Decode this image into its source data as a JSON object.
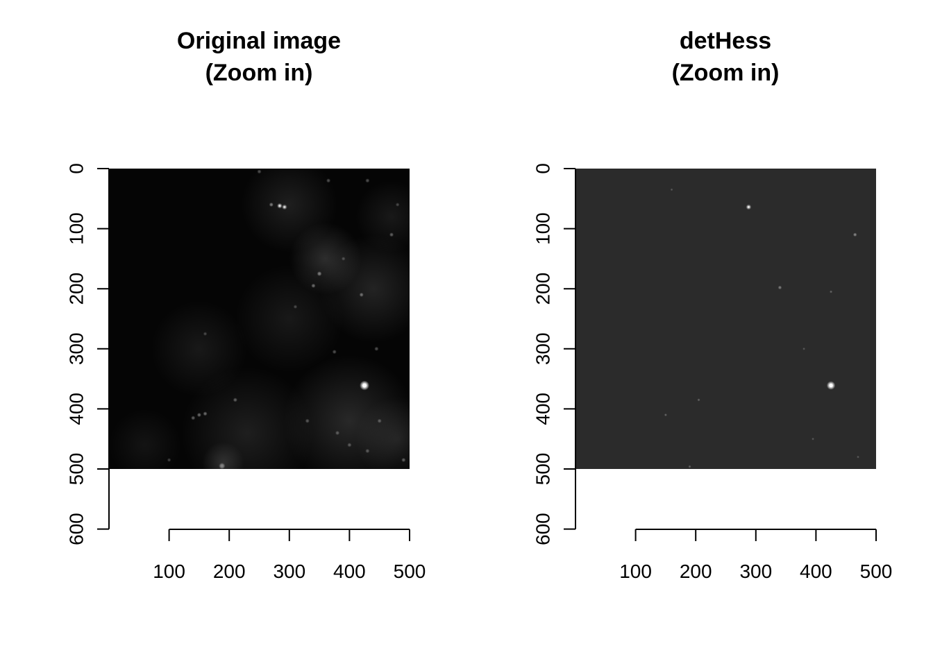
{
  "chart_data": [
    {
      "type": "heatmap",
      "title": [
        "Original image",
        "(Zoom in)"
      ],
      "xlabel": "",
      "ylabel": "",
      "xlim": [
        0,
        500
      ],
      "ylim": [
        600,
        0
      ],
      "image_extent": {
        "x": [
          0,
          500
        ],
        "y": [
          0,
          500
        ]
      },
      "x_ticks": [
        100,
        200,
        300,
        400,
        500
      ],
      "y_ticks": [
        0,
        100,
        200,
        300,
        400,
        500,
        600
      ],
      "colormap": "grayscale",
      "background": "#050505",
      "spot_color": "#ffffff",
      "glows": [
        {
          "x": 360,
          "y": 150,
          "r": 60,
          "intensity": 0.16
        },
        {
          "x": 300,
          "y": 60,
          "r": 80,
          "intensity": 0.1
        },
        {
          "x": 440,
          "y": 200,
          "r": 90,
          "intensity": 0.12
        },
        {
          "x": 300,
          "y": 250,
          "r": 90,
          "intensity": 0.08
        },
        {
          "x": 150,
          "y": 300,
          "r": 80,
          "intensity": 0.08
        },
        {
          "x": 400,
          "y": 420,
          "r": 110,
          "intensity": 0.14
        },
        {
          "x": 230,
          "y": 440,
          "r": 110,
          "intensity": 0.1
        },
        {
          "x": 480,
          "y": 450,
          "r": 70,
          "intensity": 0.1
        },
        {
          "x": 60,
          "y": 460,
          "r": 60,
          "intensity": 0.06
        },
        {
          "x": 190,
          "y": 490,
          "r": 35,
          "intensity": 0.14
        },
        {
          "x": 470,
          "y": 80,
          "r": 60,
          "intensity": 0.08
        }
      ],
      "spots": [
        {
          "x": 425,
          "y": 361,
          "r": 4.5,
          "intensity": 1.0
        },
        {
          "x": 284,
          "y": 62,
          "r": 2.5,
          "intensity": 0.65
        },
        {
          "x": 292,
          "y": 64,
          "r": 2.5,
          "intensity": 0.6
        },
        {
          "x": 270,
          "y": 60,
          "r": 2,
          "intensity": 0.45
        },
        {
          "x": 350,
          "y": 175,
          "r": 2.2,
          "intensity": 0.45
        },
        {
          "x": 340,
          "y": 195,
          "r": 2,
          "intensity": 0.4
        },
        {
          "x": 420,
          "y": 210,
          "r": 2,
          "intensity": 0.4
        },
        {
          "x": 470,
          "y": 110,
          "r": 2,
          "intensity": 0.35
        },
        {
          "x": 188,
          "y": 495,
          "r": 3,
          "intensity": 0.45
        },
        {
          "x": 150,
          "y": 410,
          "r": 2,
          "intensity": 0.4
        },
        {
          "x": 160,
          "y": 408,
          "r": 2,
          "intensity": 0.4
        },
        {
          "x": 140,
          "y": 415,
          "r": 2,
          "intensity": 0.35
        },
        {
          "x": 210,
          "y": 385,
          "r": 2,
          "intensity": 0.35
        },
        {
          "x": 330,
          "y": 420,
          "r": 2,
          "intensity": 0.3
        },
        {
          "x": 380,
          "y": 440,
          "r": 2,
          "intensity": 0.3
        },
        {
          "x": 400,
          "y": 460,
          "r": 2,
          "intensity": 0.3
        },
        {
          "x": 430,
          "y": 470,
          "r": 2,
          "intensity": 0.3
        },
        {
          "x": 450,
          "y": 420,
          "r": 2,
          "intensity": 0.3
        },
        {
          "x": 490,
          "y": 485,
          "r": 2,
          "intensity": 0.35
        },
        {
          "x": 375,
          "y": 305,
          "r": 2,
          "intensity": 0.3
        },
        {
          "x": 445,
          "y": 300,
          "r": 2,
          "intensity": 0.3
        },
        {
          "x": 430,
          "y": 20,
          "r": 2,
          "intensity": 0.3
        },
        {
          "x": 365,
          "y": 20,
          "r": 2,
          "intensity": 0.3
        },
        {
          "x": 250,
          "y": 5,
          "r": 2,
          "intensity": 0.3
        },
        {
          "x": 160,
          "y": 275,
          "r": 1.8,
          "intensity": 0.25
        },
        {
          "x": 310,
          "y": 230,
          "r": 1.8,
          "intensity": 0.25
        },
        {
          "x": 480,
          "y": 60,
          "r": 1.8,
          "intensity": 0.25
        },
        {
          "x": 390,
          "y": 150,
          "r": 1.8,
          "intensity": 0.25
        },
        {
          "x": 100,
          "y": 485,
          "r": 1.8,
          "intensity": 0.25
        }
      ]
    },
    {
      "type": "heatmap",
      "title": [
        "detHess",
        "(Zoom in)"
      ],
      "xlabel": "",
      "ylabel": "",
      "xlim": [
        0,
        500
      ],
      "ylim": [
        600,
        0
      ],
      "image_extent": {
        "x": [
          0,
          500
        ],
        "y": [
          0,
          500
        ]
      },
      "x_ticks": [
        100,
        200,
        300,
        400,
        500
      ],
      "y_ticks": [
        0,
        100,
        200,
        300,
        400,
        500,
        600
      ],
      "colormap": "grayscale",
      "background": "#2b2b2b",
      "spot_color": "#ffffff",
      "glows": [],
      "spots": [
        {
          "x": 425,
          "y": 361,
          "r": 4,
          "intensity": 1.0
        },
        {
          "x": 288,
          "y": 64,
          "r": 2.5,
          "intensity": 0.7
        },
        {
          "x": 465,
          "y": 110,
          "r": 1.8,
          "intensity": 0.45
        },
        {
          "x": 340,
          "y": 198,
          "r": 1.8,
          "intensity": 0.4
        },
        {
          "x": 425,
          "y": 205,
          "r": 1.3,
          "intensity": 0.3
        },
        {
          "x": 150,
          "y": 410,
          "r": 1.3,
          "intensity": 0.3
        },
        {
          "x": 205,
          "y": 385,
          "r": 1.3,
          "intensity": 0.3
        },
        {
          "x": 190,
          "y": 496,
          "r": 1.3,
          "intensity": 0.3
        },
        {
          "x": 160,
          "y": 35,
          "r": 1.2,
          "intensity": 0.25
        },
        {
          "x": 380,
          "y": 300,
          "r": 1.2,
          "intensity": 0.25
        },
        {
          "x": 395,
          "y": 450,
          "r": 1.2,
          "intensity": 0.25
        },
        {
          "x": 470,
          "y": 480,
          "r": 1.2,
          "intensity": 0.25
        }
      ]
    }
  ]
}
